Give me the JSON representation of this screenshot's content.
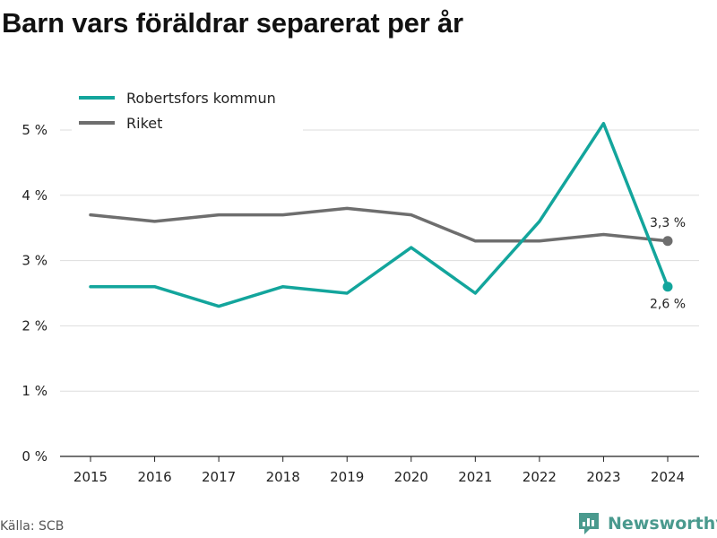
{
  "title": "Barn vars föräldrar separerat per år",
  "source": "Källa: SCB",
  "brand": "Newsworthy",
  "colors": {
    "kommun": "#13a59c",
    "riket": "#6e6e6e",
    "grid": "#dddddd",
    "brand": "#4a9a8e"
  },
  "chart_data": {
    "type": "line",
    "x": [
      2015,
      2016,
      2017,
      2018,
      2019,
      2020,
      2021,
      2022,
      2023,
      2024
    ],
    "x_tick_labels": [
      "2015",
      "2016",
      "2017",
      "2018",
      "2019",
      "2020",
      "2021",
      "2022",
      "2023",
      "2024"
    ],
    "y_ticks": [
      0,
      1,
      2,
      3,
      4,
      5
    ],
    "y_tick_labels": [
      "0 %",
      "1 %",
      "2 %",
      "3 %",
      "4 %",
      "5 %"
    ],
    "ylim": [
      0,
      5
    ],
    "grid": "horizontal",
    "legend": "top-left",
    "series": [
      {
        "name": "Robertsfors kommun",
        "values": [
          2.6,
          2.6,
          2.3,
          2.6,
          2.5,
          3.2,
          2.5,
          3.6,
          5.1,
          2.6
        ],
        "end_label": "2,6 %"
      },
      {
        "name": "Riket",
        "values": [
          3.7,
          3.6,
          3.7,
          3.7,
          3.8,
          3.7,
          3.3,
          3.3,
          3.4,
          3.3
        ],
        "end_label": "3,3 %"
      }
    ]
  }
}
